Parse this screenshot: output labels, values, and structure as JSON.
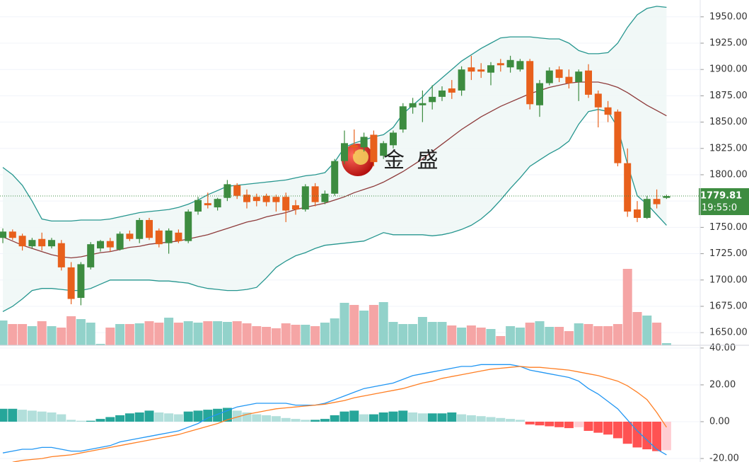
{
  "chart_data": [
    {
      "type": "candlestick",
      "open": [
        1740,
        1746,
        1742,
        1732,
        1739,
        1732,
        1735,
        1712,
        1683,
        1712,
        1730,
        1737,
        1729,
        1744,
        1739,
        1757,
        1747,
        1735,
        1745,
        1737,
        1765,
        1773,
        1769,
        1778,
        1790,
        1781,
        1779,
        1780,
        1779,
        1779,
        1771,
        1767,
        1789,
        1774,
        1782,
        1813,
        1828,
        1826,
        1838,
        1818,
        1828,
        1843,
        1864,
        1866,
        1869,
        1874,
        1882,
        1880,
        1902,
        1900,
        1897,
        1906,
        1902,
        1900,
        1908,
        1866,
        1887,
        1900,
        1893,
        1888,
        1899,
        1877,
        1864,
        1860,
        1811,
        1767,
        1759,
        1777,
        1778
      ],
      "high": [
        1749,
        1748,
        1744,
        1740,
        1745,
        1740,
        1738,
        1717,
        1717,
        1736,
        1738,
        1740,
        1746,
        1747,
        1759,
        1759,
        1749,
        1749,
        1748,
        1767,
        1779,
        1783,
        1778,
        1795,
        1792,
        1786,
        1782,
        1782,
        1781,
        1783,
        1776,
        1791,
        1792,
        1785,
        1815,
        1842,
        1843,
        1840,
        1842,
        1832,
        1842,
        1868,
        1873,
        1880,
        1885,
        1884,
        1890,
        1903,
        1913,
        1906,
        1907,
        1910,
        1913,
        1910,
        1910,
        1890,
        1902,
        1903,
        1900,
        1900,
        1905,
        1880,
        1870,
        1862,
        1825,
        1775,
        1780,
        1786,
        1781
      ],
      "low": [
        1735,
        1738,
        1728,
        1730,
        1728,
        1730,
        1709,
        1677,
        1676,
        1710,
        1727,
        1727,
        1728,
        1737,
        1735,
        1738,
        1731,
        1725,
        1735,
        1735,
        1762,
        1768,
        1766,
        1775,
        1777,
        1768,
        1770,
        1770,
        1765,
        1755,
        1762,
        1765,
        1770,
        1772,
        1780,
        1810,
        1820,
        1822,
        1808,
        1815,
        1825,
        1840,
        1858,
        1850,
        1862,
        1870,
        1872,
        1875,
        1890,
        1892,
        1885,
        1898,
        1897,
        1898,
        1862,
        1855,
        1885,
        1888,
        1882,
        1870,
        1873,
        1845,
        1850,
        1808,
        1760,
        1755,
        1758,
        1768,
        1777
      ],
      "close": [
        1746,
        1740,
        1732,
        1738,
        1732,
        1738,
        1712,
        1682,
        1715,
        1734,
        1737,
        1731,
        1744,
        1739,
        1757,
        1740,
        1734,
        1747,
        1737,
        1765,
        1776,
        1771,
        1777,
        1791,
        1780,
        1774,
        1775,
        1774,
        1774,
        1766,
        1767,
        1789,
        1774,
        1782,
        1813,
        1830,
        1826,
        1836,
        1812,
        1830,
        1840,
        1865,
        1868,
        1868,
        1874,
        1880,
        1878,
        1900,
        1898,
        1898,
        1904,
        1904,
        1909,
        1908,
        1867,
        1887,
        1899,
        1892,
        1887,
        1898,
        1876,
        1864,
        1857,
        1811,
        1765,
        1759,
        1777,
        1772,
        1779.81
      ],
      "volume": [
        35,
        30,
        30,
        27,
        34,
        27,
        25,
        41,
        37,
        32,
        2,
        25,
        30,
        30,
        31,
        34,
        32,
        39,
        32,
        34,
        32,
        34,
        34,
        33,
        34,
        31,
        27,
        26,
        24,
        31,
        29,
        29,
        27,
        32,
        38,
        60,
        57,
        49,
        57,
        61,
        33,
        30,
        30,
        40,
        33,
        33,
        28,
        25,
        28,
        25,
        23,
        13,
        27,
        25,
        32,
        34,
        26,
        26,
        20,
        31,
        30,
        27,
        27,
        30,
        108,
        47,
        42,
        32,
        3
      ],
      "bollinger_upper": [
        1807,
        1800,
        1790,
        1775,
        1758,
        1756,
        1756,
        1756,
        1757,
        1757,
        1757,
        1758,
        1760,
        1762,
        1764,
        1765,
        1766,
        1767,
        1769,
        1772,
        1776,
        1781,
        1785,
        1789,
        1790,
        1791,
        1792,
        1793,
        1794,
        1795,
        1797,
        1799,
        1800,
        1802,
        1812,
        1826,
        1830,
        1833,
        1836,
        1838,
        1845,
        1858,
        1866,
        1874,
        1884,
        1892,
        1900,
        1908,
        1914,
        1920,
        1925,
        1930,
        1931,
        1931,
        1931,
        1930,
        1929,
        1929,
        1925,
        1918,
        1915,
        1915,
        1916,
        1925,
        1940,
        1952,
        1958,
        1960,
        1959
      ],
      "bollinger_middle": [
        1741,
        1737,
        1733,
        1730,
        1727,
        1724,
        1722,
        1721,
        1722,
        1724,
        1726,
        1727,
        1729,
        1731,
        1732,
        1734,
        1735,
        1736,
        1737,
        1739,
        1741,
        1743,
        1746,
        1749,
        1752,
        1755,
        1757,
        1760,
        1762,
        1764,
        1767,
        1769,
        1771,
        1773,
        1776,
        1779,
        1783,
        1786,
        1789,
        1793,
        1798,
        1803,
        1809,
        1815,
        1822,
        1829,
        1836,
        1843,
        1849,
        1855,
        1860,
        1865,
        1869,
        1873,
        1877,
        1880,
        1883,
        1885,
        1887,
        1888,
        1888,
        1888,
        1886,
        1883,
        1878,
        1872,
        1866,
        1861,
        1856
      ],
      "bollinger_lower": [
        1670,
        1675,
        1682,
        1690,
        1692,
        1692,
        1691,
        1690,
        1690,
        1692,
        1696,
        1700,
        1700,
        1700,
        1700,
        1700,
        1699,
        1699,
        1698,
        1697,
        1694,
        1692,
        1691,
        1690,
        1690,
        1691,
        1693,
        1702,
        1712,
        1718,
        1723,
        1726,
        1730,
        1733,
        1734,
        1735,
        1736,
        1737,
        1741,
        1745,
        1743,
        1743,
        1743,
        1743,
        1742,
        1743,
        1745,
        1748,
        1752,
        1758,
        1766,
        1776,
        1787,
        1797,
        1808,
        1814,
        1820,
        1825,
        1832,
        1848,
        1860,
        1862,
        1860,
        1845,
        1810,
        1780,
        1772,
        1762,
        1752
      ],
      "colors": {
        "up": "#3d8c40",
        "down": "#e8601c",
        "volume_up": "#92d2ca",
        "volume_down": "#f5a5a5",
        "band": "#26968f",
        "band_fill": "#eef7f6",
        "middle": "#8e3b3b",
        "last_price": "#3d8c40"
      },
      "ylim": [
        1638,
        1966
      ],
      "yticks": [
        {
          "value": 1950,
          "label": "1950.00"
        },
        {
          "value": 1925,
          "label": "1925.00"
        },
        {
          "value": 1900,
          "label": "1900.00"
        },
        {
          "value": 1875,
          "label": "1875.00"
        },
        {
          "value": 1850,
          "label": "1850.00"
        },
        {
          "value": 1825,
          "label": "1825.00"
        },
        {
          "value": 1800,
          "label": "1800.00"
        },
        {
          "value": 1775,
          "label": "1775.00"
        },
        {
          "value": 1750,
          "label": "1750.00"
        },
        {
          "value": 1725,
          "label": "1725.00"
        },
        {
          "value": 1700,
          "label": "1700.00"
        },
        {
          "value": 1675,
          "label": "1675.00"
        },
        {
          "value": 1650,
          "label": "1650.00"
        }
      ],
      "last_price": {
        "value": 1779.81,
        "label": "1779.81"
      },
      "countdown": "19:55:0",
      "watermark": "金 盛",
      "grid": true
    },
    {
      "type": "macd",
      "histogram": [
        7,
        7,
        6.5,
        6,
        5.5,
        5,
        4,
        1,
        0.5,
        0.5,
        1.5,
        2.5,
        3.5,
        4.5,
        5,
        6,
        5,
        4.5,
        4,
        5.5,
        6,
        6.5,
        7,
        7.5,
        6,
        5,
        4,
        3.5,
        3,
        2,
        1.5,
        1,
        1,
        1.5,
        3.5,
        5.5,
        6,
        4,
        4,
        5,
        5.5,
        6,
        5,
        4.5,
        4.5,
        4.5,
        5,
        4,
        3.5,
        3,
        2.5,
        2,
        1.5,
        1,
        -1.5,
        -2,
        -2.5,
        -3,
        -3.5,
        -3,
        -5,
        -6,
        -7,
        -9,
        -12,
        -14,
        -15,
        -16,
        -15.5
      ],
      "histogram_colors": [
        "#26a69a",
        "#b2dfdb",
        "#ff5252",
        "#ffcdd2"
      ],
      "series": [
        {
          "color": "#2196f3",
          "values": [
            -17,
            -16,
            -15,
            -15,
            -14,
            -14,
            -15,
            -16,
            -16,
            -15,
            -14,
            -13,
            -11,
            -10,
            -9,
            -8,
            -7,
            -6,
            -5,
            -3,
            -1,
            2,
            4,
            6,
            8,
            9,
            10,
            10,
            10,
            10,
            9,
            9,
            9,
            10,
            12,
            14,
            16,
            18,
            19,
            20,
            21,
            23,
            25,
            26,
            27,
            28,
            29,
            30,
            30,
            31,
            31,
            31,
            31,
            30,
            28,
            27,
            26,
            25,
            24,
            22,
            18,
            15,
            11,
            7,
            1,
            -5,
            -10,
            -15,
            -18
          ]
        },
        {
          "color": "#ff7f24",
          "values": [
            null,
            -22,
            -21,
            -20.5,
            -20,
            -19,
            -18.5,
            -18,
            -17,
            -16,
            -15,
            -14,
            -13,
            -12,
            -11,
            -10,
            -9,
            -8,
            -7,
            -5.5,
            -4,
            -2.5,
            -1,
            1,
            2.5,
            4,
            5,
            6,
            7,
            7.5,
            8,
            8.5,
            9,
            9.5,
            10.5,
            11.5,
            13,
            14,
            15,
            16,
            17,
            18,
            19.5,
            21,
            22,
            23.5,
            24.5,
            25.5,
            26.5,
            27.5,
            28.5,
            29,
            29.5,
            30,
            29.5,
            29.5,
            29,
            28.5,
            28,
            27,
            26,
            25,
            23.5,
            22,
            19.5,
            16,
            12,
            5,
            -3
          ]
        }
      ],
      "ylim": [
        -21.9,
        41.5
      ],
      "yticks": [
        {
          "value": 40,
          "label": "40.00"
        },
        {
          "value": 20,
          "label": "20.00"
        },
        {
          "value": 0,
          "label": "0.00"
        },
        {
          "value": -20,
          "label": "-20.00"
        }
      ],
      "grid": true
    }
  ]
}
